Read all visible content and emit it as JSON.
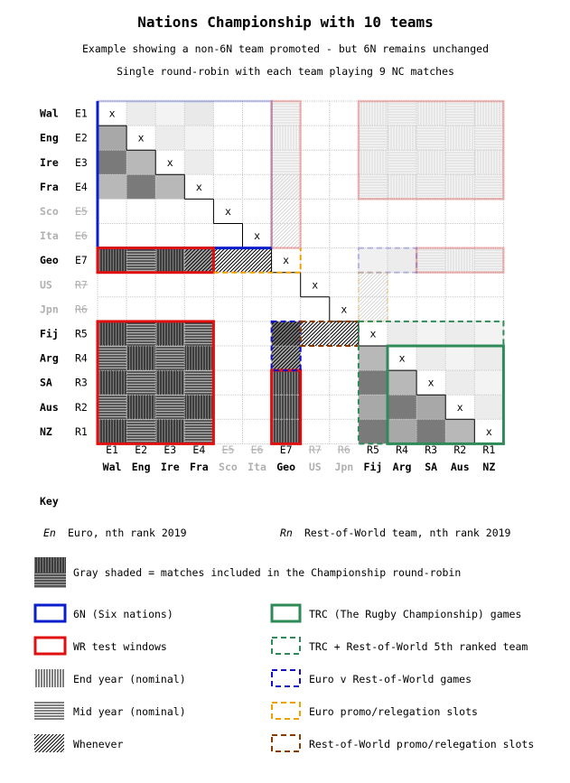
{
  "title": "Nations Championship with 10 teams",
  "subtitle1": "Example showing a non-6N team promoted - but 6N remains unchanged",
  "subtitle2": "Single round-robin with each team playing 9 NC matches",
  "teams": [
    {
      "name": "Wal",
      "code": "E1",
      "active": true
    },
    {
      "name": "Eng",
      "code": "E2",
      "active": true
    },
    {
      "name": "Ire",
      "code": "E3",
      "active": true
    },
    {
      "name": "Fra",
      "code": "E4",
      "active": true
    },
    {
      "name": "Sco",
      "code": "E5",
      "active": false
    },
    {
      "name": "Ita",
      "code": "E6",
      "active": false
    },
    {
      "name": "Geo",
      "code": "E7",
      "active": true
    },
    {
      "name": "US",
      "code": "R7",
      "active": false
    },
    {
      "name": "Jpn",
      "code": "R6",
      "active": false
    },
    {
      "name": "Fij",
      "code": "R5",
      "active": true
    },
    {
      "name": "Arg",
      "code": "R4",
      "active": true
    },
    {
      "name": "SA",
      "code": "R3",
      "active": true
    },
    {
      "name": "Aus",
      "code": "R2",
      "active": true
    },
    {
      "name": "NZ",
      "code": "R1",
      "active": true
    }
  ],
  "diagonal_mark": "x",
  "key": {
    "heading": "Key",
    "euro_code": "En",
    "euro_text": "Euro, nth rank 2019",
    "row_code": "Rn",
    "row_text": "Rest-of-World team, nth rank 2019",
    "gray": "Gray shaded = matches included in the Championship round-robin",
    "six_n": "6N (Six nations)",
    "wr": "WR test windows",
    "end_year": "End year (nominal)",
    "mid_year": "Mid year (nominal)",
    "whenever": "Whenever",
    "trc": "TRC (The Rugby Championship) games",
    "trc5": "TRC + Rest-of-World 5th ranked team",
    "euro_row": "Euro v Rest-of-World games",
    "euro_promo": "Euro promo/relegation slots",
    "row_promo": "Rest-of-World promo/relegation slots"
  },
  "colors": {
    "six_n": "#0a1ecc",
    "wr": "#e01010",
    "trc": "#2e8b57",
    "euro_row": "#1010cc",
    "euro_promo": "#f0a000",
    "row_promo": "#8b3a00"
  }
}
